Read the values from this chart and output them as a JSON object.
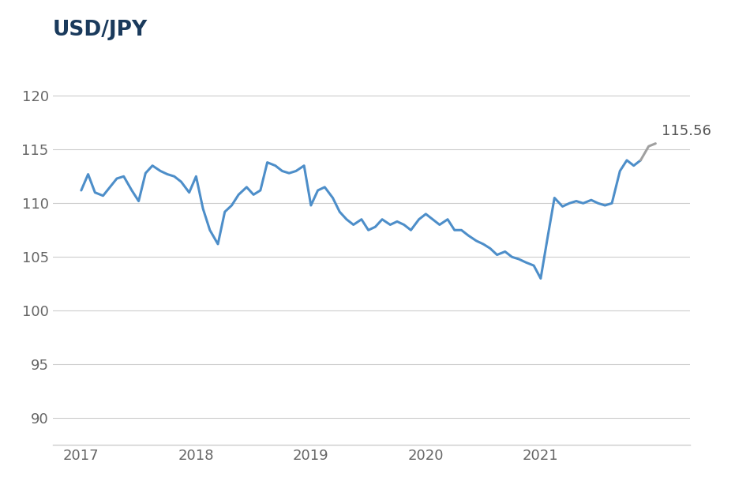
{
  "title": "USD/JPY",
  "title_color": "#1a3a5c",
  "title_fontsize": 19,
  "line_color": "#4d8ec9",
  "line_color_end": "#a0a0a0",
  "line_width": 2.2,
  "annotation_text": "115.56",
  "annotation_color": "#555555",
  "annotation_fontsize": 13,
  "background_color": "#ffffff",
  "grid_color": "#cccccc",
  "ytick_color": "#666666",
  "xtick_color": "#666666",
  "ytick_fontsize": 13,
  "xtick_fontsize": 13,
  "ylim": [
    87.5,
    123
  ],
  "yticks": [
    90,
    95,
    100,
    105,
    110,
    115,
    120
  ],
  "xlim": [
    2016.75,
    2022.3
  ],
  "xtick_positions": [
    2017,
    2018,
    2019,
    2020,
    2021
  ],
  "xtick_labels": [
    "2017",
    "2018",
    "2019",
    "2020",
    "2021"
  ],
  "dates": [
    2017.0,
    2017.06,
    2017.12,
    2017.19,
    2017.25,
    2017.31,
    2017.37,
    2017.44,
    2017.5,
    2017.56,
    2017.62,
    2017.69,
    2017.75,
    2017.81,
    2017.87,
    2017.94,
    2018.0,
    2018.06,
    2018.12,
    2018.19,
    2018.25,
    2018.31,
    2018.37,
    2018.44,
    2018.5,
    2018.56,
    2018.62,
    2018.69,
    2018.75,
    2018.81,
    2018.87,
    2018.94,
    2019.0,
    2019.06,
    2019.12,
    2019.19,
    2019.25,
    2019.31,
    2019.37,
    2019.44,
    2019.5,
    2019.56,
    2019.62,
    2019.69,
    2019.75,
    2019.81,
    2019.87,
    2019.94,
    2020.0,
    2020.06,
    2020.12,
    2020.19,
    2020.25,
    2020.31,
    2020.37,
    2020.44,
    2020.5,
    2020.56,
    2020.62,
    2020.69,
    2020.75,
    2020.81,
    2020.87,
    2020.94,
    2021.0,
    2021.06,
    2021.12,
    2021.19,
    2021.25,
    2021.31,
    2021.37,
    2021.44,
    2021.5,
    2021.56,
    2021.62,
    2021.69,
    2021.75,
    2021.81,
    2021.87,
    2021.94,
    2022.0
  ],
  "values": [
    111.2,
    112.7,
    111.0,
    110.7,
    111.5,
    112.3,
    112.5,
    111.2,
    110.2,
    112.8,
    113.5,
    113.0,
    112.7,
    112.5,
    112.0,
    111.0,
    112.5,
    109.5,
    107.5,
    106.2,
    109.2,
    109.8,
    110.8,
    111.5,
    110.8,
    111.2,
    113.8,
    113.5,
    113.0,
    112.8,
    113.0,
    113.5,
    109.8,
    111.2,
    111.5,
    110.5,
    109.2,
    108.5,
    108.0,
    108.5,
    107.5,
    107.8,
    108.5,
    108.0,
    108.3,
    108.0,
    107.5,
    108.5,
    109.0,
    108.5,
    108.0,
    108.5,
    107.5,
    107.5,
    107.0,
    106.5,
    106.2,
    105.8,
    105.2,
    105.5,
    105.0,
    104.8,
    104.5,
    104.2,
    103.0,
    106.8,
    110.5,
    109.7,
    110.0,
    110.2,
    110.0,
    110.3,
    110.0,
    109.8,
    110.0,
    113.0,
    114.0,
    113.5,
    114.0,
    115.3,
    115.56
  ],
  "gray_split_index": 78
}
